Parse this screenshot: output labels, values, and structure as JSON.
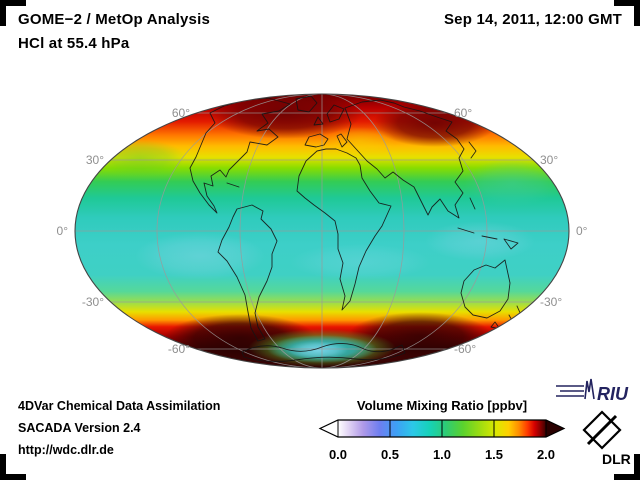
{
  "header": {
    "title_line1": "GOME−2 / MetOp Analysis",
    "title_line2": "HCl at 55.4 hPa",
    "datetime": "Sep 14, 2011, 12:00 GMT"
  },
  "map": {
    "projection": "Mollweide global",
    "lat_labels": [
      "60°",
      "30°",
      "0°",
      "-30°",
      "-60°"
    ]
  },
  "colorbar": {
    "title": "Volume Mixing Ratio [ppbv]",
    "ticks": [
      "0.0",
      "0.5",
      "1.0",
      "1.5",
      "2.0"
    ],
    "min": 0.0,
    "max": 2.0,
    "unit": "ppbv",
    "gradient": [
      [
        0.0,
        "#ffffff"
      ],
      [
        0.05,
        "#e2d4f4"
      ],
      [
        0.12,
        "#b09ae8"
      ],
      [
        0.2,
        "#6e7ef0"
      ],
      [
        0.28,
        "#3e9ff5"
      ],
      [
        0.36,
        "#2cc8e8"
      ],
      [
        0.44,
        "#16d2b8"
      ],
      [
        0.52,
        "#2ecc74"
      ],
      [
        0.6,
        "#5ad22e"
      ],
      [
        0.68,
        "#9bdc12"
      ],
      [
        0.76,
        "#dce800"
      ],
      [
        0.82,
        "#ffd000"
      ],
      [
        0.87,
        "#ff8c00"
      ],
      [
        0.91,
        "#ff3c00"
      ],
      [
        0.945,
        "#d40000"
      ],
      [
        0.975,
        "#850000"
      ],
      [
        1.0,
        "#3c0000"
      ]
    ]
  },
  "footer": {
    "line1": "4DVar Chemical Data Assimilation",
    "line2": "SACADA Version 2.4",
    "line3": "http://wdc.dlr.de"
  },
  "logos": {
    "riu_text": "RIU",
    "dlr_text": "DLR"
  },
  "chart_data": {
    "type": "heatmap",
    "title": "HCl volume mixing ratio at 55.4 hPa (GOME-2 / MetOp analysis)",
    "units": "ppbv",
    "range": [
      0.0,
      2.0
    ],
    "legend_position": "bottom-center",
    "zonal_profile": [
      {
        "lat_band": "60N-90N",
        "approx_ppbv": "1.4-2.0",
        "color": "red / dark red maxima over Arctic"
      },
      {
        "lat_band": "45N-60N",
        "approx_ppbv": "1.1-1.4",
        "color": "orange-yellow"
      },
      {
        "lat_band": "30N-45N",
        "approx_ppbv": "0.9-1.1",
        "color": "green"
      },
      {
        "lat_band": "30S-30N",
        "approx_ppbv": "0.6-0.9",
        "color": "cyan with light-blue patches"
      },
      {
        "lat_band": "45S-30S",
        "approx_ppbv": "0.9-1.2",
        "color": "green-yellow transition"
      },
      {
        "lat_band": "75S-45S",
        "approx_ppbv": "1.8-2.0+",
        "color": "saturated dark red collar around Antarctica"
      },
      {
        "lat_band": "90S-75S",
        "approx_ppbv": "0.5-0.9",
        "color": "cyan/green minimum over Antarctic interior"
      }
    ]
  }
}
